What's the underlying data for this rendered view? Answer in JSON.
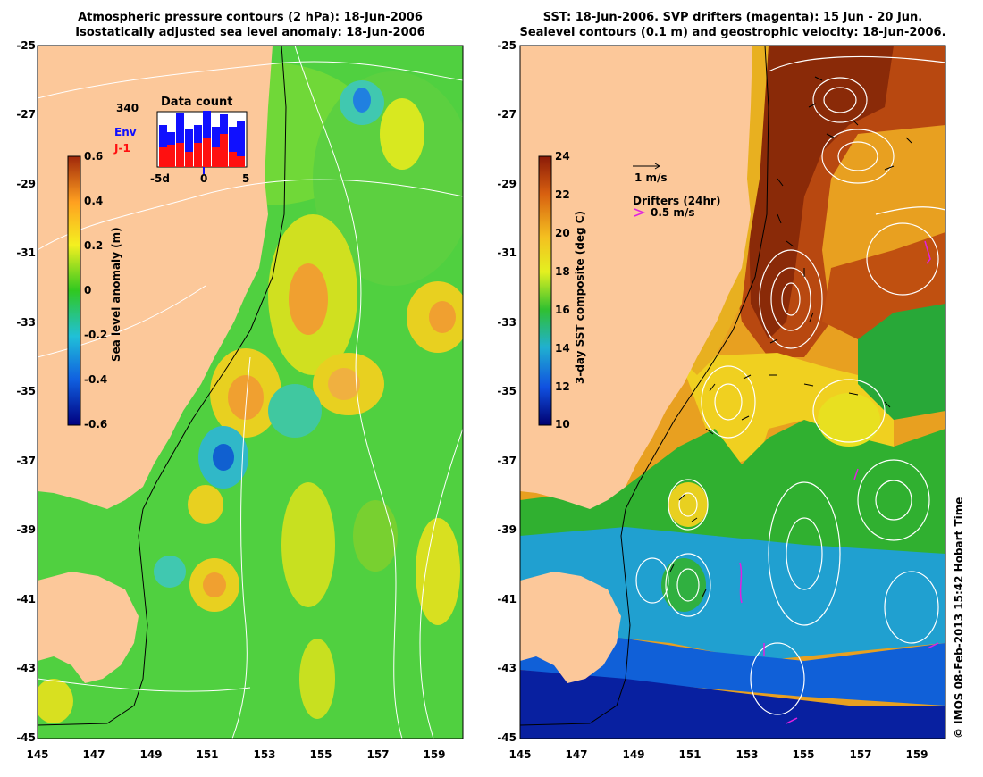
{
  "left_panel": {
    "title_line1": "Atmospheric pressure contours (2 hPa): 18-Jun-2006",
    "title_line2": "Isostatically adjusted sea level anomaly: 18-Jun-2006",
    "colorbar_label": "Sea level anomaly (m)",
    "colorbar_ticks": [
      "0.6",
      "0.4",
      "0.2",
      "0",
      "-0.2",
      "-0.4",
      "-0.6"
    ],
    "inset": {
      "title": "Data count",
      "max_label": "340",
      "series_env": "Env",
      "series_j1": "J-1",
      "x_ticks": [
        "-5d",
        "0",
        "5"
      ],
      "env_color": "#1010ff",
      "j1_color": "#ff1010"
    }
  },
  "right_panel": {
    "title_line1": "SST: 18-Jun-2006. SVP drifters (magenta): 15 Jun - 20 Jun.",
    "title_line2": "Sealevel contours (0.1 m) and geostrophic velocity: 18-Jun-2006.",
    "colorbar_label": "3-day SST composite (deg C)",
    "colorbar_ticks": [
      "24",
      "22",
      "20",
      "18",
      "16",
      "14",
      "12",
      "10"
    ],
    "velocity_scale_label": "1 m/s",
    "drifters_label": "Drifters (24hr)",
    "drifters_speed": "0.5 m/s"
  },
  "axes": {
    "lat_ticks": [
      "-25",
      "-27",
      "-29",
      "-31",
      "-33",
      "-35",
      "-37",
      "-39",
      "-41",
      "-43",
      "-45"
    ],
    "lon_ticks": [
      "145",
      "147",
      "149",
      "151",
      "153",
      "155",
      "157",
      "159"
    ]
  },
  "credit": "© IMOS 08-Feb-2013 15:42 Hobart Time",
  "colors": {
    "land": "#fcc89a",
    "drifter": "#e020e0",
    "contour": "#ffffff"
  }
}
